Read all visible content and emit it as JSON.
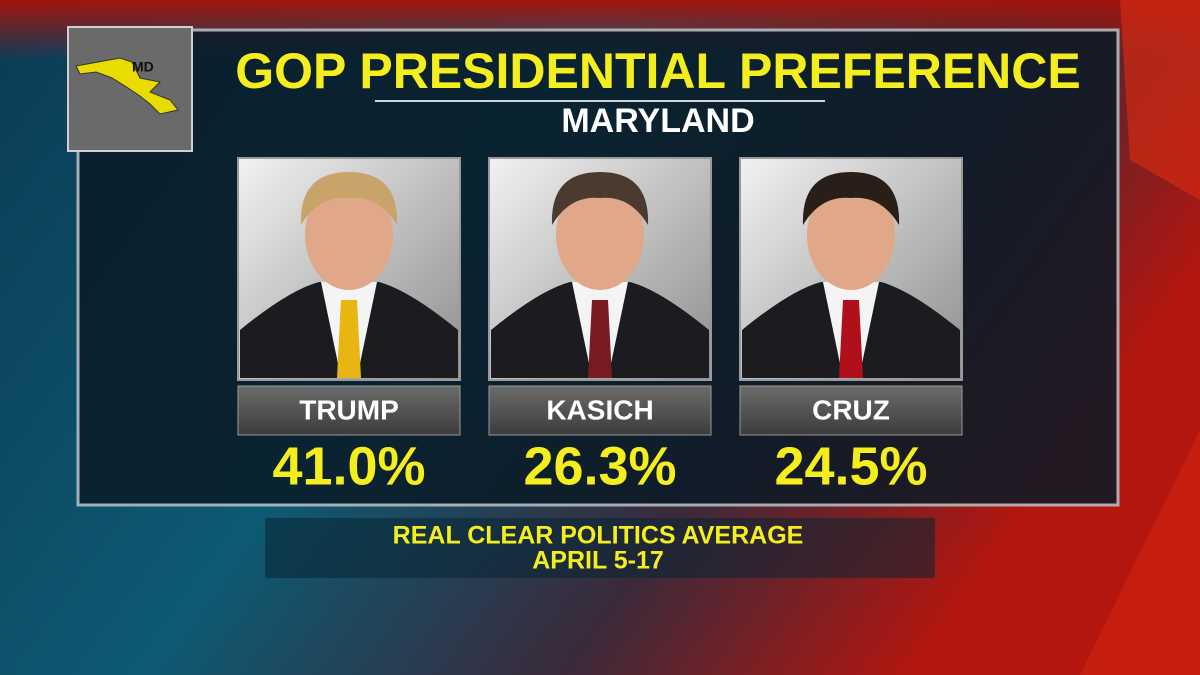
{
  "header": {
    "title": "GOP PRESIDENTIAL PREFERENCE",
    "subtitle": "MARYLAND",
    "state_label": "MD"
  },
  "candidates": [
    {
      "name": "TRUMP",
      "share": "41.0%"
    },
    {
      "name": "KASICH",
      "share": "26.3%"
    },
    {
      "name": "CRUZ",
      "share": "24.5%"
    }
  ],
  "footer": {
    "source": "REAL CLEAR POLITICS AVERAGE",
    "dates": "APRIL 5-17"
  }
}
